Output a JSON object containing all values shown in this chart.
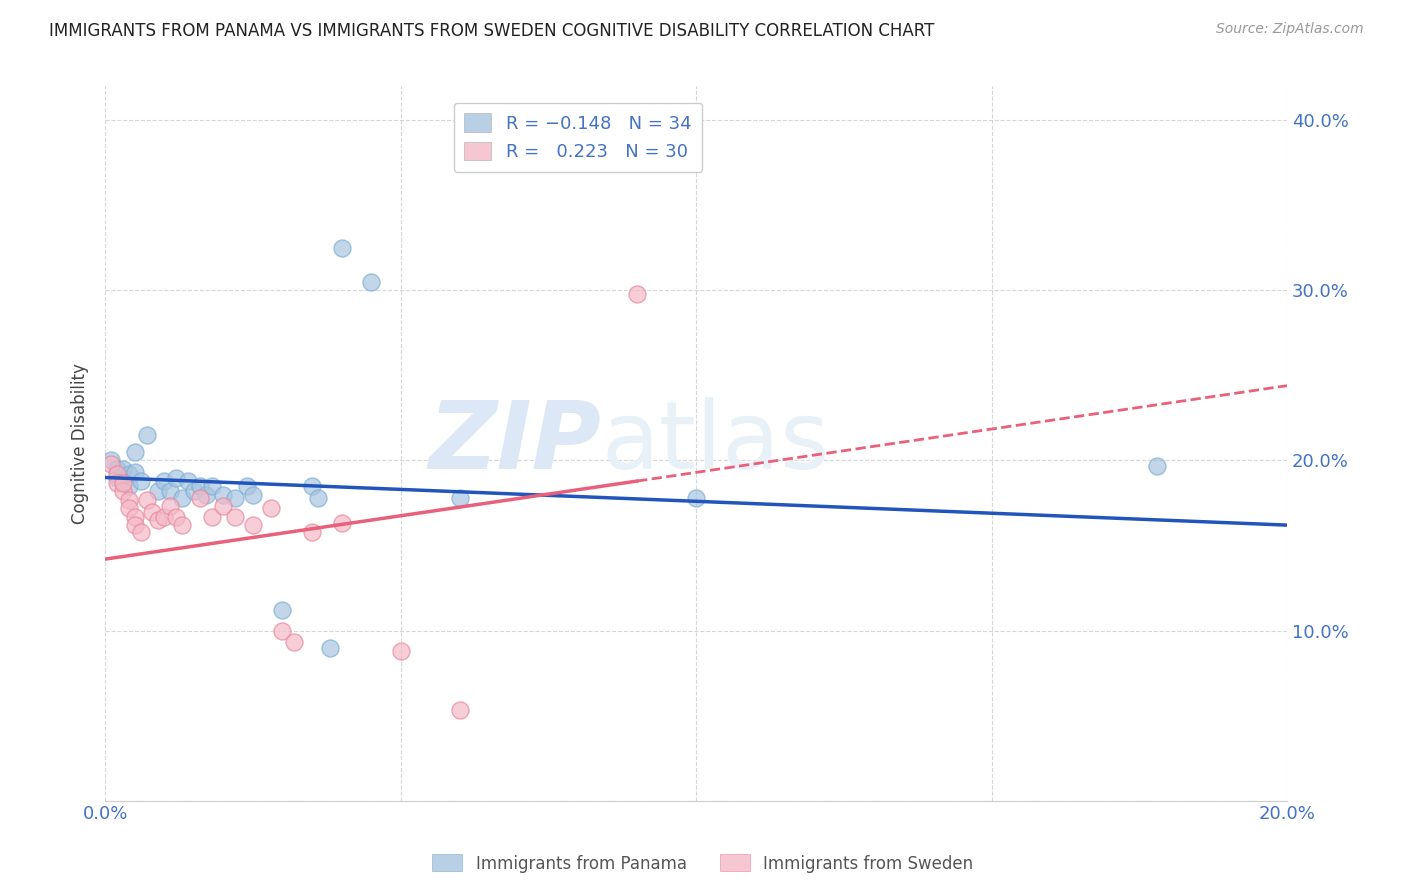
{
  "title": "IMMIGRANTS FROM PANAMA VS IMMIGRANTS FROM SWEDEN COGNITIVE DISABILITY CORRELATION CHART",
  "source": "Source: ZipAtlas.com",
  "axis_color": "#4472c4",
  "ylabel": "Cognitive Disability",
  "xlim": [
    0.0,
    0.2
  ],
  "ylim": [
    0.0,
    0.42
  ],
  "xticks": [
    0.0,
    0.05,
    0.1,
    0.15,
    0.2
  ],
  "yticks": [
    0.0,
    0.1,
    0.2,
    0.3,
    0.4
  ],
  "xtick_labels": [
    "0.0%",
    "",
    "",
    "",
    "20.0%"
  ],
  "ytick_labels_right": [
    "",
    "10.0%",
    "20.0%",
    "30.0%",
    "40.0%"
  ],
  "panama_color": "#a8c4e0",
  "panama_edge_color": "#7bafd4",
  "sweden_color": "#f4b8c8",
  "sweden_edge_color": "#e8879a",
  "panama_line_color": "#2255bb",
  "sweden_line_color": "#e8607a",
  "panama_R": -0.148,
  "panama_N": 34,
  "sweden_R": 0.223,
  "sweden_N": 30,
  "panama_points": [
    [
      0.001,
      0.2
    ],
    [
      0.002,
      0.195
    ],
    [
      0.002,
      0.19
    ],
    [
      0.003,
      0.195
    ],
    [
      0.003,
      0.188
    ],
    [
      0.004,
      0.192
    ],
    [
      0.004,
      0.185
    ],
    [
      0.005,
      0.205
    ],
    [
      0.005,
      0.193
    ],
    [
      0.006,
      0.188
    ],
    [
      0.007,
      0.215
    ],
    [
      0.009,
      0.182
    ],
    [
      0.01,
      0.188
    ],
    [
      0.011,
      0.182
    ],
    [
      0.012,
      0.19
    ],
    [
      0.013,
      0.178
    ],
    [
      0.014,
      0.188
    ],
    [
      0.015,
      0.182
    ],
    [
      0.016,
      0.185
    ],
    [
      0.017,
      0.18
    ],
    [
      0.018,
      0.185
    ],
    [
      0.02,
      0.18
    ],
    [
      0.022,
      0.178
    ],
    [
      0.024,
      0.185
    ],
    [
      0.025,
      0.18
    ],
    [
      0.03,
      0.112
    ],
    [
      0.035,
      0.185
    ],
    [
      0.036,
      0.178
    ],
    [
      0.038,
      0.09
    ],
    [
      0.04,
      0.325
    ],
    [
      0.045,
      0.305
    ],
    [
      0.06,
      0.178
    ],
    [
      0.1,
      0.178
    ],
    [
      0.178,
      0.197
    ]
  ],
  "sweden_points": [
    [
      0.001,
      0.198
    ],
    [
      0.002,
      0.192
    ],
    [
      0.002,
      0.187
    ],
    [
      0.003,
      0.182
    ],
    [
      0.003,
      0.187
    ],
    [
      0.004,
      0.177
    ],
    [
      0.004,
      0.172
    ],
    [
      0.005,
      0.167
    ],
    [
      0.005,
      0.162
    ],
    [
      0.006,
      0.158
    ],
    [
      0.007,
      0.177
    ],
    [
      0.008,
      0.17
    ],
    [
      0.009,
      0.165
    ],
    [
      0.01,
      0.167
    ],
    [
      0.011,
      0.173
    ],
    [
      0.012,
      0.167
    ],
    [
      0.013,
      0.162
    ],
    [
      0.016,
      0.178
    ],
    [
      0.018,
      0.167
    ],
    [
      0.02,
      0.173
    ],
    [
      0.022,
      0.167
    ],
    [
      0.025,
      0.162
    ],
    [
      0.028,
      0.172
    ],
    [
      0.03,
      0.1
    ],
    [
      0.032,
      0.093
    ],
    [
      0.035,
      0.158
    ],
    [
      0.04,
      0.163
    ],
    [
      0.05,
      0.088
    ],
    [
      0.06,
      0.053
    ],
    [
      0.09,
      0.298
    ]
  ],
  "background_color": "#ffffff",
  "watermark_zip": "ZIP",
  "watermark_atlas": "atlas",
  "watermark_color": "#dce8f5"
}
